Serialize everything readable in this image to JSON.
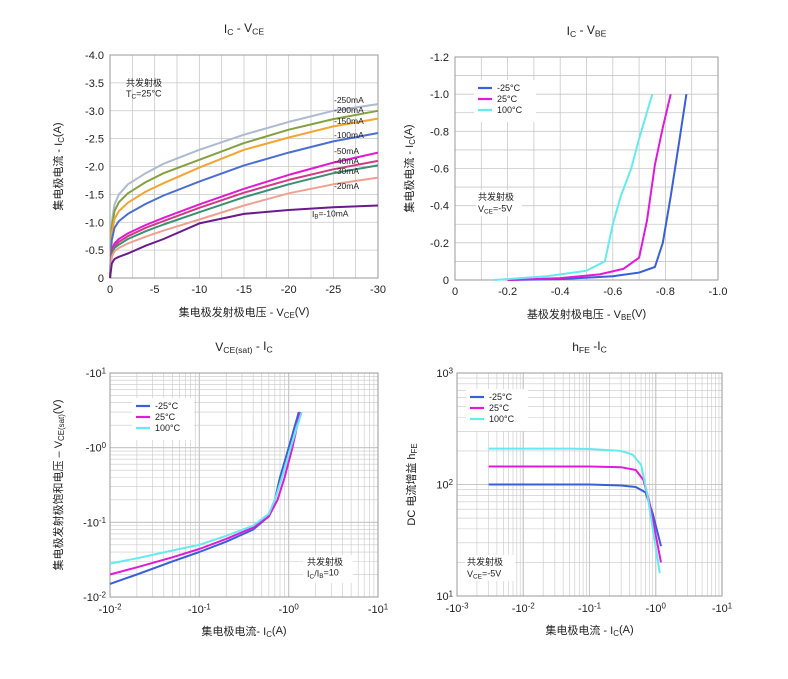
{
  "chart_data": [
    {
      "id": "ic_vce",
      "type": "line",
      "title": "Iᴄ - Vᴄᴇ",
      "title_parts": [
        "I",
        "C",
        " - V",
        "CE"
      ],
      "xlabel": "集电极发射极电压 - V",
      "xlabel_sub": "CE",
      "xlabel_tail": "(V)",
      "ylabel": "集电极电流 - I",
      "ylabel_sub": "C",
      "ylabel_tail": "(A)",
      "xlim": [
        0,
        -30
      ],
      "ylim": [
        0,
        -4.0
      ],
      "x_ticks": [
        "0",
        "-5",
        "-10",
        "-15",
        "-20",
        "-25",
        "-30"
      ],
      "y_ticks": [
        "0",
        "-0.5",
        "-1.0",
        "-1.5",
        "-2.0",
        "-2.5",
        "-3.0",
        "-3.5",
        "-4.0"
      ],
      "grid": true,
      "annotation_lines": [
        "共发射极",
        "T",
        "C",
        "=25°C"
      ],
      "series": [
        {
          "name": "-250mA",
          "color": "#adbad0",
          "x": [
            0,
            -0.2,
            -0.5,
            -1,
            -2,
            -4,
            -6,
            -10,
            -15,
            -20,
            -25,
            -30
          ],
          "y": [
            0,
            -1.0,
            -1.32,
            -1.5,
            -1.68,
            -1.88,
            -2.05,
            -2.3,
            -2.57,
            -2.8,
            -3.0,
            -3.12
          ]
        },
        {
          "name": "-200mA",
          "color": "#84a040",
          "x": [
            0,
            -0.2,
            -0.5,
            -1,
            -2,
            -4,
            -6,
            -10,
            -15,
            -20,
            -25,
            -30
          ],
          "y": [
            0,
            -0.9,
            -1.2,
            -1.36,
            -1.52,
            -1.72,
            -1.88,
            -2.12,
            -2.42,
            -2.66,
            -2.85,
            -3.0
          ]
        },
        {
          "name": "-150mA",
          "color": "#f4a431",
          "x": [
            0,
            -0.2,
            -0.5,
            -1,
            -2,
            -4,
            -6,
            -10,
            -15,
            -20,
            -25,
            -30
          ],
          "y": [
            0,
            -0.8,
            -1.06,
            -1.2,
            -1.35,
            -1.55,
            -1.7,
            -1.98,
            -2.3,
            -2.52,
            -2.72,
            -2.86
          ]
        },
        {
          "name": "-100mA",
          "color": "#4a6fd0",
          "x": [
            0,
            -0.2,
            -0.5,
            -1,
            -2,
            -4,
            -6,
            -10,
            -15,
            -20,
            -25,
            -30
          ],
          "y": [
            0,
            -0.68,
            -0.9,
            -1.02,
            -1.15,
            -1.33,
            -1.48,
            -1.73,
            -2.02,
            -2.25,
            -2.45,
            -2.6
          ]
        },
        {
          "name": "-50mA",
          "color": "#e21ad0",
          "x": [
            0,
            -0.2,
            -0.5,
            -1,
            -2,
            -4,
            -6,
            -10,
            -15,
            -20,
            -25,
            -30
          ],
          "y": [
            0,
            -0.48,
            -0.62,
            -0.7,
            -0.8,
            -0.95,
            -1.08,
            -1.32,
            -1.6,
            -1.85,
            -2.07,
            -2.25
          ]
        },
        {
          "name": "-40mA",
          "color": "#d03a8a",
          "x": [
            0,
            -0.2,
            -0.5,
            -1,
            -2,
            -4,
            -6,
            -10,
            -15,
            -20,
            -25,
            -30
          ],
          "y": [
            0,
            -0.44,
            -0.57,
            -0.65,
            -0.75,
            -0.9,
            -1.02,
            -1.26,
            -1.53,
            -1.76,
            -1.95,
            -2.1
          ]
        },
        {
          "name": "-30mA",
          "color": "#3a9070",
          "x": [
            0,
            -0.2,
            -0.5,
            -1,
            -2,
            -4,
            -6,
            -10,
            -15,
            -20,
            -25,
            -30
          ],
          "y": [
            0,
            -0.42,
            -0.54,
            -0.6,
            -0.7,
            -0.84,
            -0.96,
            -1.18,
            -1.45,
            -1.68,
            -1.88,
            -2.02
          ]
        },
        {
          "name": "-20mA",
          "color": "#f0a090",
          "x": [
            0,
            -0.2,
            -0.5,
            -1,
            -2,
            -4,
            -6,
            -10,
            -15,
            -20,
            -25,
            -30
          ],
          "y": [
            0,
            -0.38,
            -0.48,
            -0.54,
            -0.62,
            -0.74,
            -0.85,
            -1.05,
            -1.3,
            -1.52,
            -1.68,
            -1.8
          ]
        },
        {
          "name": "-10mA",
          "color": "#6a1a8a",
          "x": [
            0,
            -0.2,
            -0.5,
            -1,
            -2,
            -4,
            -6,
            -10,
            -15,
            -20,
            -25,
            -30
          ],
          "y": [
            0,
            -0.26,
            -0.34,
            -0.38,
            -0.44,
            -0.58,
            -0.7,
            -0.98,
            -1.15,
            -1.22,
            -1.27,
            -1.3
          ]
        }
      ],
      "curve_label_prefix": "I",
      "curve_label_sub": "B",
      "curve_label_last": "=-10mA"
    },
    {
      "id": "ic_vbe",
      "type": "line",
      "title_parts": [
        "I",
        "C",
        " - V",
        "BE"
      ],
      "xlabel": "基极发射极电压 - V",
      "xlabel_sub": "BE",
      "xlabel_tail": "(V)",
      "ylabel": "集电极电流 - I",
      "ylabel_sub": "C",
      "ylabel_tail": "(A)",
      "xlim": [
        0,
        -1.0
      ],
      "ylim": [
        0,
        -1.2
      ],
      "x_ticks": [
        "0",
        "-0.2",
        "-0.4",
        "-0.6",
        "-0.8",
        "-1.0"
      ],
      "y_ticks": [
        "0",
        "-0.2",
        "-0.4",
        "-0.6",
        "-0.8",
        "-1.0",
        "-1.2"
      ],
      "grid": true,
      "annotation_lines": [
        "共发射极",
        "V",
        "CE",
        "=-5V"
      ],
      "series": [
        {
          "name": "-25°C",
          "color": "#3a5fd8",
          "x": [
            -0.2,
            -0.4,
            -0.6,
            -0.7,
            -0.76,
            -0.79,
            -0.82,
            -0.85,
            -0.88
          ],
          "y": [
            0,
            -0.005,
            -0.02,
            -0.04,
            -0.07,
            -0.2,
            -0.45,
            -0.72,
            -1.0
          ]
        },
        {
          "name": "25°C",
          "color": "#e01ad8",
          "x": [
            -0.2,
            -0.4,
            -0.55,
            -0.64,
            -0.7,
            -0.73,
            -0.76,
            -0.79,
            -0.82
          ],
          "y": [
            0,
            -0.01,
            -0.03,
            -0.06,
            -0.12,
            -0.32,
            -0.62,
            -0.82,
            -1.0
          ]
        },
        {
          "name": "100°C",
          "color": "#66eaf0",
          "x": [
            -0.15,
            -0.35,
            -0.5,
            -0.57,
            -0.6,
            -0.63,
            -0.67,
            -0.7,
            -0.75
          ],
          "y": [
            0,
            -0.02,
            -0.05,
            -0.1,
            -0.3,
            -0.45,
            -0.6,
            -0.76,
            -1.0
          ]
        }
      ]
    },
    {
      "id": "vcesat_ic",
      "type": "line",
      "title_parts": [
        "V",
        "CE(sat)",
        " - I",
        "C"
      ],
      "xlabel": "集电极电流- I",
      "xlabel_sub": "C",
      "xlabel_tail": "(A)",
      "ylabel": "集电极发射极饱和电压  –  V",
      "ylabel_sub": "CE(sat)",
      "ylabel_tail": "(V)",
      "x_scale": "log",
      "y_scale": "log",
      "xlim": [
        -0.01,
        -10
      ],
      "ylim": [
        -0.01,
        -10
      ],
      "x_ticks": [
        [
          "-10",
          "-2"
        ],
        [
          "-10",
          "-1"
        ],
        [
          "-10",
          "0"
        ],
        [
          "-10",
          "1"
        ]
      ],
      "y_ticks": [
        [
          "-10",
          "-2"
        ],
        [
          "-10",
          "-1"
        ],
        [
          "-10",
          "0"
        ],
        [
          "-10",
          "1"
        ]
      ],
      "grid": true,
      "annotation_lines": [
        "共发射极",
        "I",
        "C",
        "/I",
        "B",
        "=10"
      ],
      "series": [
        {
          "name": "-25°C",
          "color": "#3a5fd8",
          "x": [
            -0.01,
            -0.02,
            -0.05,
            -0.1,
            -0.2,
            -0.4,
            -0.6,
            -0.7,
            -0.8,
            -1.0,
            -1.3
          ],
          "y": [
            -0.015,
            -0.02,
            -0.03,
            -0.04,
            -0.055,
            -0.08,
            -0.12,
            -0.2,
            -0.4,
            -1.0,
            -3.0
          ]
        },
        {
          "name": "25°C",
          "color": "#e01ad8",
          "x": [
            -0.01,
            -0.02,
            -0.05,
            -0.1,
            -0.2,
            -0.4,
            -0.6,
            -0.75,
            -0.9,
            -1.1,
            -1.35
          ],
          "y": [
            -0.02,
            -0.025,
            -0.034,
            -0.044,
            -0.06,
            -0.085,
            -0.12,
            -0.2,
            -0.4,
            -1.0,
            -3.0
          ]
        },
        {
          "name": "100°C",
          "color": "#66eaf0",
          "x": [
            -0.01,
            -0.02,
            -0.05,
            -0.1,
            -0.2,
            -0.4,
            -0.6,
            -0.7,
            -0.85,
            -1.05,
            -1.4
          ],
          "y": [
            -0.028,
            -0.033,
            -0.042,
            -0.05,
            -0.066,
            -0.09,
            -0.13,
            -0.2,
            -0.42,
            -1.0,
            -3.0
          ]
        }
      ]
    },
    {
      "id": "hfe_ic",
      "type": "line",
      "title_parts": [
        "h",
        "FE",
        " -I",
        "C"
      ],
      "xlabel": "集电极电流  - I",
      "xlabel_sub": "C",
      "xlabel_tail": "(A)",
      "ylabel": "DC 电流增益  h",
      "ylabel_sub": "FE",
      "x_scale": "log",
      "y_scale": "log",
      "xlim": [
        -0.001,
        -10
      ],
      "ylim": [
        10,
        1000
      ],
      "x_ticks": [
        [
          "-10",
          "-3"
        ],
        [
          "-10",
          "-2"
        ],
        [
          "-10",
          "-1"
        ],
        [
          "-10",
          "0"
        ],
        [
          "-10",
          "1"
        ]
      ],
      "y_ticks": [
        [
          "10",
          "1"
        ],
        [
          "10",
          "2"
        ],
        [
          "10",
          "3"
        ]
      ],
      "grid": true,
      "annotation_lines": [
        "共发射极",
        "V",
        "CE",
        "=-5V"
      ],
      "series": [
        {
          "name": "-25°C",
          "color": "#3a5fd8",
          "x": [
            -0.003,
            -0.01,
            -0.05,
            -0.1,
            -0.3,
            -0.5,
            -0.7,
            -0.9,
            -1.2
          ],
          "y": [
            100,
            100,
            100,
            100,
            98,
            95,
            85,
            55,
            28
          ]
        },
        {
          "name": "25°C",
          "color": "#e01ad8",
          "x": [
            -0.003,
            -0.01,
            -0.05,
            -0.1,
            -0.3,
            -0.5,
            -0.65,
            -0.8,
            -1.2
          ],
          "y": [
            145,
            145,
            145,
            145,
            143,
            135,
            110,
            70,
            20
          ]
        },
        {
          "name": "100°C",
          "color": "#66eaf0",
          "x": [
            -0.003,
            -0.01,
            -0.05,
            -0.1,
            -0.3,
            -0.45,
            -0.6,
            -0.75,
            -1.15
          ],
          "y": [
            210,
            210,
            210,
            208,
            200,
            185,
            150,
            80,
            16
          ]
        }
      ]
    }
  ]
}
